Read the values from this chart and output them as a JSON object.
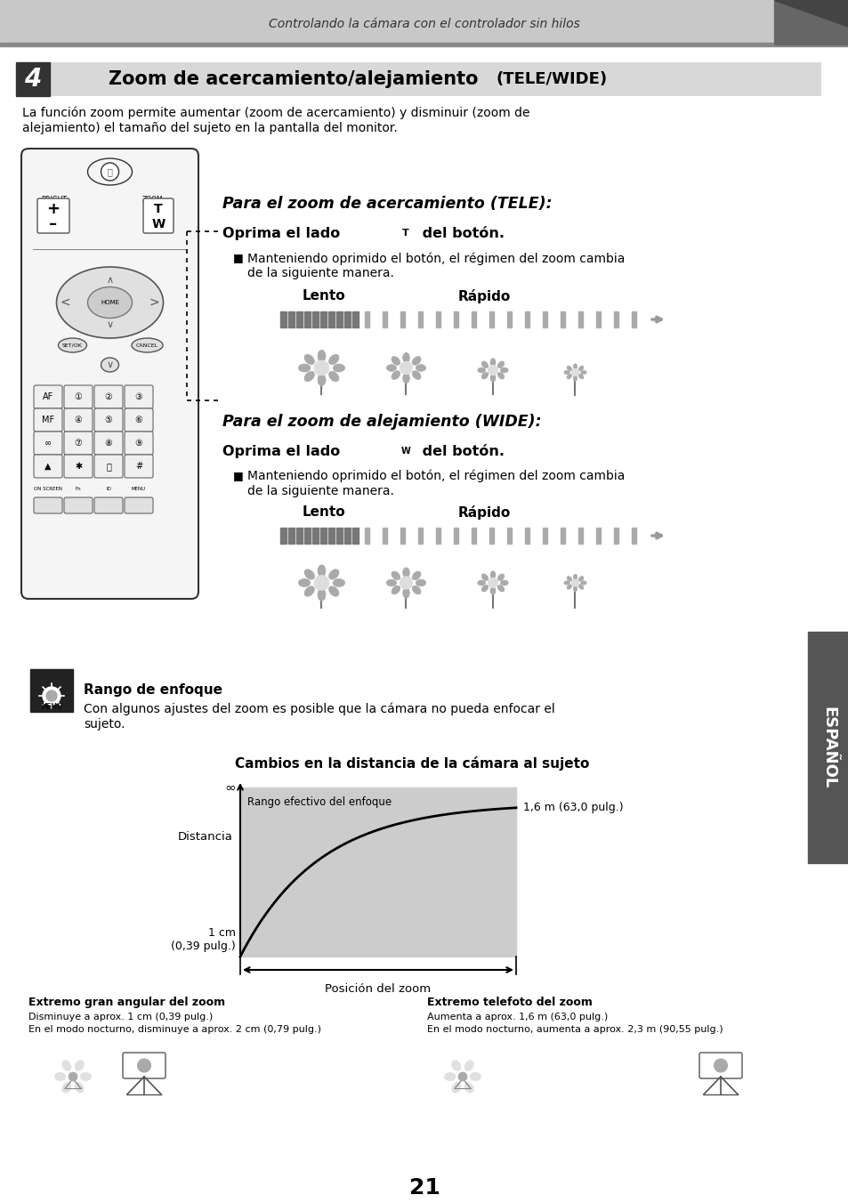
{
  "header_text": "Controlando la cámara con el controlador sin hilos",
  "chapter_num": "4",
  "title_main": "Zoom de acercamiento/alejamiento",
  "title_suffix": "(TELE/WIDE)",
  "intro_text": "La función zoom permite aumentar (zoom de acercamiento) y disminuir (zoom de\nalejamiento) el tamaño del sujeto en la pantalla del monitor.",
  "tele_heading": "Para el zoom de acercamiento (TELE):",
  "tele_oprima": "Oprima el lado",
  "tele_key": "T",
  "tele_del": "del botón.",
  "tele_bullet": "Manteniendo oprimido el botón, el régimen del zoom cambia\nde la siguiente manera.",
  "wide_heading": "Para el zoom de alejamiento (WIDE):",
  "wide_oprima": "Oprima el lado",
  "wide_key": "W",
  "wide_del": "del botón.",
  "wide_bullet": "Manteniendo oprimido el botón, el régimen del zoom cambia\nde la siguiente manera.",
  "lento": "Lento",
  "rapido": "Rápido",
  "memo_title": "Rango de enfoque",
  "memo_body": "Con algunos ajustes del zoom es posible que la cámara no pueda enfocar el\nsujeto.",
  "memo_label": "MEMO",
  "graph_title": "Cambios en la distancia de la cámara al sujeto",
  "graph_y": "Distancia",
  "graph_box": "Rango efectivo del enfoque",
  "graph_x": "Posición del zoom",
  "graph_r": "1,6 m (63,0 pulg.)",
  "graph_bl": "1 cm\n(0,39 pulg.)",
  "bl_title": "Extremo gran angular del zoom",
  "bl_s1": "Disminuye a aprox. 1 cm (0,39 pulg.)",
  "bl_s2": "En el modo nocturno, disminuye a aprox. 2 cm (0,79 pulg.)",
  "br_title": "Extremo telefoto del zoom",
  "br_s1": "Aumenta a aprox. 1,6 m (63,0 pulg.)",
  "br_s2": "En el modo nocturno, aumenta a aprox. 2,3 m (90,55 pulg.)",
  "espanol": "ESPAÑOL",
  "page_num": "21"
}
